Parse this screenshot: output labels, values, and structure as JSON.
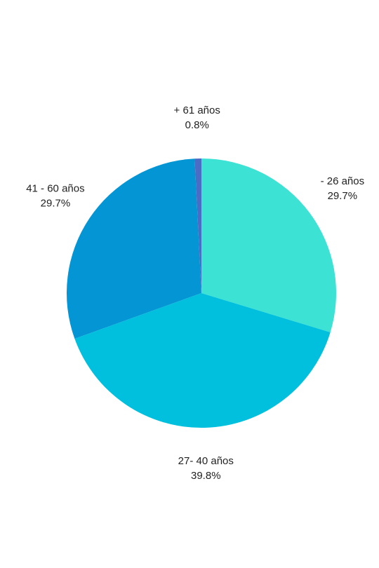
{
  "chart_data": {
    "type": "pie",
    "categories": [
      "- 26 años",
      "27- 40 años",
      "41 - 60 años",
      "+ 61 años"
    ],
    "values": [
      29.7,
      39.8,
      29.7,
      0.8
    ],
    "value_labels": [
      "29.7%",
      "39.8%",
      "29.7%",
      "0.8%"
    ],
    "colors": [
      "#3ce3d4",
      "#00c0dd",
      "#0496d4",
      "#4a6cc4"
    ]
  }
}
